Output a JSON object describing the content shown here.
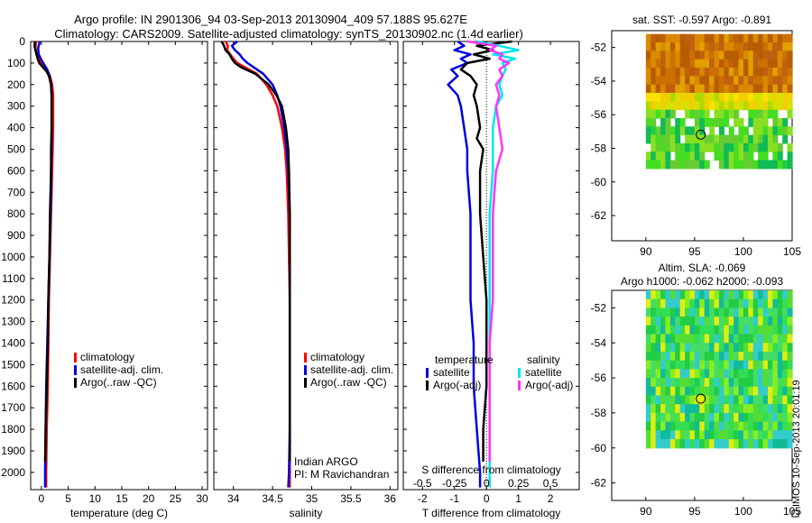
{
  "title_line1": "Argo profile: IN 2901306_94 03-Sep-2013 20130904_409 57.188S 95.627E",
  "title_line2": "Climatology: CARS2009. Satellite-adjusted climatology: synTS_20130902.nc (1.4d earlier)",
  "credit": "IMOS 10-Sep-2013 20:01:19",
  "chart_data": [
    {
      "id": "temperature",
      "type": "line",
      "xlabel": "temperature (deg C)",
      "ylabel": "",
      "xlim": [
        -2,
        31
      ],
      "ylim": [
        2080,
        0
      ],
      "xticks": [
        0,
        5,
        10,
        15,
        20,
        25,
        30
      ],
      "xticklabels": [
        "0",
        "5",
        "10",
        "15",
        "20",
        "25",
        "30"
      ],
      "yticks": [
        0,
        100,
        200,
        300,
        400,
        500,
        600,
        700,
        800,
        900,
        1000,
        1100,
        1200,
        1300,
        1400,
        1500,
        1600,
        1700,
        1800,
        1900,
        2000
      ],
      "yticklabels": [
        "0",
        "100",
        "200",
        "300",
        "400",
        "500",
        "600",
        "700",
        "800",
        "900",
        "1000",
        "1100",
        "1200",
        "1300",
        "1400",
        "1500",
        "1600",
        "1700",
        "1800",
        "1900",
        "2000"
      ],
      "legend": [
        "climatology",
        "satellite-adj. clim.",
        "Argo(..raw -QC)"
      ],
      "series": [
        {
          "name": "climatology",
          "color": "#ff0000",
          "depth": [
            0,
            30,
            60,
            90,
            110,
            130,
            160,
            200,
            250,
            300,
            400,
            500,
            600,
            700,
            800,
            900,
            1000,
            1200,
            1400,
            1600,
            1800,
            2000,
            2070
          ],
          "values": [
            -1.0,
            -1.1,
            -0.9,
            -0.3,
            0.4,
            1.0,
            1.6,
            2.0,
            2.2,
            2.2,
            2.2,
            2.1,
            2.0,
            1.9,
            1.8,
            1.7,
            1.6,
            1.4,
            1.3,
            1.2,
            1.0,
            0.9,
            0.9
          ]
        },
        {
          "name": "satellite-adj. clim.",
          "color": "#0000dd",
          "depth": [
            0,
            30,
            60,
            90,
            110,
            130,
            160,
            200,
            250,
            300,
            400,
            500,
            600,
            700,
            800,
            900,
            1000,
            1200,
            1400,
            1600,
            1800,
            2000,
            2070
          ],
          "values": [
            -0.3,
            -0.6,
            -0.5,
            0.1,
            0.6,
            1.1,
            1.5,
            1.8,
            1.9,
            1.9,
            1.9,
            1.9,
            1.8,
            1.8,
            1.7,
            1.6,
            1.5,
            1.3,
            1.1,
            0.9,
            0.8,
            0.7,
            0.7
          ]
        },
        {
          "name": "Argo(..raw -QC)",
          "color": "#000000",
          "depth": [
            0,
            20,
            40,
            60,
            80,
            100,
            120,
            140,
            160,
            180,
            200,
            250,
            300,
            400,
            500,
            600,
            800,
            1000,
            1200,
            1400,
            1600,
            1800,
            1950
          ],
          "values": [
            -1.2,
            -1.3,
            -1.1,
            -0.9,
            -0.7,
            -0.4,
            0.3,
            1.0,
            1.4,
            1.6,
            1.8,
            1.9,
            1.9,
            1.9,
            1.8,
            1.8,
            1.6,
            1.5,
            1.3,
            1.2,
            1.0,
            0.8,
            0.7
          ]
        }
      ]
    },
    {
      "id": "salinity",
      "type": "line",
      "xlabel": "salinity",
      "xlim": [
        33.75,
        36.1
      ],
      "ylim": [
        2080,
        0
      ],
      "xticks": [
        34,
        34.5,
        35,
        35.5,
        36
      ],
      "xticklabels": [
        "34",
        "34.5",
        "35",
        "35.5",
        "36"
      ],
      "legend": [
        "climatology",
        "satellite-adj. clim.",
        "Argo(..raw -QC)"
      ],
      "annotation": [
        "Indian ARGO",
        "PI: M Ravichandran"
      ],
      "series": [
        {
          "name": "climatology",
          "color": "#ff0000",
          "depth": [
            0,
            20,
            40,
            60,
            80,
            100,
            120,
            150,
            200,
            250,
            300,
            400,
            500,
            600,
            700,
            800,
            1000,
            1200,
            1500,
            1800,
            2000,
            2070
          ],
          "values": [
            33.9,
            33.93,
            33.92,
            33.96,
            34.0,
            34.05,
            34.15,
            34.3,
            34.42,
            34.5,
            34.56,
            34.62,
            34.66,
            34.68,
            34.69,
            34.7,
            34.71,
            34.72,
            34.72,
            34.72,
            34.72,
            34.72
          ]
        },
        {
          "name": "satellite-adj. clim.",
          "color": "#0000dd",
          "depth": [
            0,
            20,
            40,
            60,
            80,
            100,
            120,
            150,
            200,
            250,
            300,
            400,
            500,
            600,
            700,
            800,
            1000,
            1200,
            1500,
            1800,
            2000,
            2070
          ],
          "values": [
            34.05,
            33.98,
            34.02,
            34.08,
            34.12,
            34.18,
            34.26,
            34.38,
            34.5,
            34.56,
            34.6,
            34.65,
            34.68,
            34.7,
            34.71,
            34.72,
            34.72,
            34.72,
            34.72,
            34.72,
            34.71,
            34.7
          ]
        },
        {
          "name": "Argo(..raw -QC)",
          "color": "#000000",
          "depth": [
            0,
            20,
            40,
            60,
            80,
            100,
            120,
            150,
            200,
            250,
            300,
            400,
            500,
            600,
            800,
            1000,
            1200,
            1500,
            1800,
            1950
          ],
          "values": [
            33.85,
            33.88,
            33.9,
            33.95,
            33.98,
            34.02,
            34.1,
            34.28,
            34.45,
            34.55,
            34.62,
            34.67,
            34.7,
            34.71,
            34.72,
            34.72,
            34.72,
            34.72,
            34.72,
            34.72
          ]
        }
      ]
    },
    {
      "id": "difference",
      "type": "line",
      "xlabel": "T difference from climatology",
      "xlabel_top": "S difference from climatology",
      "xlim": [
        -2.6,
        2.9
      ],
      "ylim": [
        2080,
        0
      ],
      "xticks": [
        -2,
        -1,
        0,
        1,
        2
      ],
      "xticklabels": [
        "-2",
        "-1",
        "0",
        "1",
        "2"
      ],
      "sticks_positions": [
        -2.0,
        -1.0,
        0.0,
        1.0,
        2.0
      ],
      "sticklabels": [
        "-0.5",
        "-0.25",
        "0",
        "0.25",
        "0.5"
      ],
      "legend_title_temperature": "temperature",
      "legend_title_salinity": "salinity",
      "legend": [
        {
          "label": "satellite",
          "color": "#0000dd"
        },
        {
          "label": "Argo(-adj)",
          "color": "#000000"
        },
        {
          "label": "satellite",
          "color": "#00e5ee"
        },
        {
          "label": "Argo(-adj)",
          "color": "#ff33ff"
        }
      ],
      "series": [
        {
          "name": "T satellite",
          "color": "#0000dd",
          "depth": [
            0,
            20,
            40,
            60,
            80,
            100,
            130,
            160,
            200,
            250,
            300,
            400,
            500,
            600,
            800,
            1000,
            1200,
            1400,
            1600,
            1800,
            2000,
            2070
          ],
          "values": [
            -0.9,
            -0.7,
            -1.0,
            -0.5,
            -0.8,
            -0.6,
            -1.1,
            -0.9,
            -1.2,
            -0.9,
            -0.8,
            -0.7,
            -0.6,
            -0.6,
            -0.5,
            -0.5,
            -0.5,
            -0.4,
            -0.4,
            -0.3,
            -0.2,
            -0.2
          ]
        },
        {
          "name": "T Argo(-adj)",
          "color": "#000000",
          "depth": [
            0,
            20,
            40,
            60,
            80,
            100,
            130,
            160,
            200,
            250,
            300,
            400,
            450,
            500,
            600,
            800,
            1000,
            1200,
            1400,
            1600,
            1800,
            1950
          ],
          "values": [
            0.8,
            -0.3,
            0.2,
            -0.4,
            0.1,
            -0.6,
            -0.8,
            -0.5,
            -0.3,
            -0.4,
            -0.3,
            -0.2,
            -0.3,
            -0.1,
            -0.2,
            -0.2,
            -0.1,
            0.0,
            0.0,
            0.0,
            -0.1,
            -0.1
          ]
        },
        {
          "name": "S satellite",
          "color": "#00e5ee",
          "depth": [
            0,
            20,
            40,
            60,
            80,
            100,
            130,
            160,
            200,
            250,
            300,
            400,
            500,
            600,
            800,
            1000,
            1200,
            1400,
            1600,
            1800,
            2000,
            2070
          ],
          "values": [
            -0.3,
            0.4,
            1.0,
            0.2,
            0.9,
            0.5,
            0.6,
            0.5,
            0.4,
            0.5,
            0.3,
            0.2,
            0.2,
            0.2,
            0.1,
            0.1,
            0.1,
            0.1,
            0.1,
            0.1,
            0.1,
            0.1
          ]
        },
        {
          "name": "S Argo(-adj)",
          "color": "#ff33ff",
          "depth": [
            0,
            20,
            40,
            60,
            80,
            100,
            130,
            160,
            200,
            250,
            300,
            400,
            500,
            600,
            800,
            1000,
            1200,
            1400,
            1600,
            1800,
            1950
          ],
          "values": [
            -0.6,
            0.3,
            0.1,
            0.5,
            0.4,
            0.7,
            0.4,
            0.5,
            0.3,
            0.4,
            0.3,
            0.4,
            0.5,
            0.3,
            0.2,
            0.2,
            0.2,
            0.1,
            0.1,
            0.1,
            0.1
          ]
        }
      ]
    },
    {
      "id": "sst-map",
      "type": "heatmap",
      "title": "sat. SST: -0.597 Argo: -0.891",
      "xlim": [
        86.5,
        105
      ],
      "ylim": [
        -63.5,
        -51
      ],
      "xticks": [
        90,
        95,
        100,
        105
      ],
      "xticklabels": [
        "90",
        "95",
        "100",
        "105"
      ],
      "yticks": [
        -52,
        -54,
        -56,
        -58,
        -60,
        -62
      ],
      "yticklabels": [
        "-52",
        "-54",
        "-56",
        "-58",
        "-60",
        "-62"
      ],
      "data_region": {
        "lon": [
          90,
          105
        ],
        "lat": [
          -58.8,
          -51.2
        ]
      },
      "argo_position": {
        "lon": 95.627,
        "lat": -57.188
      }
    },
    {
      "id": "sla-map",
      "type": "heatmap",
      "title": "Altim. SLA: -0.069",
      "subtitle": "Argo h1000: -0.062 h2000: -0.093",
      "xlim": [
        86.5,
        105
      ],
      "ylim": [
        -63,
        -51
      ],
      "xticks": [
        90,
        95,
        100,
        105
      ],
      "xticklabels": [
        "90",
        "95",
        "100",
        "105"
      ],
      "yticks": [
        -52,
        -54,
        -56,
        -58,
        -60,
        -62
      ],
      "yticklabels": [
        "-52",
        "-54",
        "-56",
        "-58",
        "-60",
        "-62"
      ],
      "data_region": {
        "lon": [
          90,
          105
        ],
        "lat": [
          -60,
          -51
        ]
      },
      "argo_position": {
        "lon": 95.627,
        "lat": -57.188
      }
    }
  ]
}
